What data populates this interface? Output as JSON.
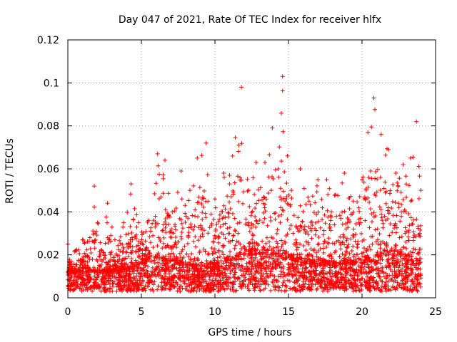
{
  "chart_data": {
    "type": "scatter",
    "title": "Day 047 of 2021, Rate Of TEC Index for receiver hlfx",
    "xlabel": "GPS time / hours",
    "ylabel": "ROTI / TECUs",
    "xlim": [
      0,
      25
    ],
    "ylim": [
      0,
      0.12
    ],
    "xticks": [
      0,
      5,
      10,
      15,
      20,
      25
    ],
    "xtick_labels": [
      "0",
      "5",
      "10",
      "15",
      "20",
      "25"
    ],
    "yticks": [
      0,
      0.02,
      0.04,
      0.06,
      0.08,
      0.1,
      0.12
    ],
    "ytick_labels": [
      "0",
      "0.02",
      "0.04",
      "0.06",
      "0.08",
      "0.1",
      "0.12"
    ],
    "grid": true,
    "marker": "+",
    "color": "#ff0000",
    "data_x_range_hours": [
      0,
      24
    ],
    "envelope": [
      {
        "x": 0.0,
        "y": 0.025
      },
      {
        "x": 0.5,
        "y": 0.022
      },
      {
        "x": 1.0,
        "y": 0.027
      },
      {
        "x": 1.5,
        "y": 0.028
      },
      {
        "x": 1.8,
        "y": 0.052
      },
      {
        "x": 2.3,
        "y": 0.022
      },
      {
        "x": 2.7,
        "y": 0.044
      },
      {
        "x": 3.2,
        "y": 0.027
      },
      {
        "x": 3.8,
        "y": 0.035
      },
      {
        "x": 4.3,
        "y": 0.053
      },
      {
        "x": 4.8,
        "y": 0.035
      },
      {
        "x": 5.5,
        "y": 0.036
      },
      {
        "x": 6.1,
        "y": 0.067
      },
      {
        "x": 6.6,
        "y": 0.064
      },
      {
        "x": 7.1,
        "y": 0.04
      },
      {
        "x": 7.7,
        "y": 0.059
      },
      {
        "x": 8.3,
        "y": 0.05
      },
      {
        "x": 8.8,
        "y": 0.065
      },
      {
        "x": 9.4,
        "y": 0.072
      },
      {
        "x": 10.0,
        "y": 0.046
      },
      {
        "x": 10.6,
        "y": 0.058
      },
      {
        "x": 11.2,
        "y": 0.066
      },
      {
        "x": 11.8,
        "y": 0.098
      },
      {
        "x": 12.3,
        "y": 0.05
      },
      {
        "x": 12.8,
        "y": 0.063
      },
      {
        "x": 13.4,
        "y": 0.063
      },
      {
        "x": 13.9,
        "y": 0.079
      },
      {
        "x": 14.3,
        "y": 0.06
      },
      {
        "x": 14.6,
        "y": 0.103
      },
      {
        "x": 15.2,
        "y": 0.05
      },
      {
        "x": 15.8,
        "y": 0.06
      },
      {
        "x": 16.4,
        "y": 0.045
      },
      {
        "x": 17.0,
        "y": 0.055
      },
      {
        "x": 17.6,
        "y": 0.055
      },
      {
        "x": 18.2,
        "y": 0.048
      },
      {
        "x": 18.8,
        "y": 0.058
      },
      {
        "x": 19.4,
        "y": 0.045
      },
      {
        "x": 20.0,
        "y": 0.055
      },
      {
        "x": 20.4,
        "y": 0.077
      },
      {
        "x": 20.8,
        "y": 0.093
      },
      {
        "x": 21.3,
        "y": 0.076
      },
      {
        "x": 21.8,
        "y": 0.069
      },
      {
        "x": 22.3,
        "y": 0.058
      },
      {
        "x": 22.8,
        "y": 0.062
      },
      {
        "x": 23.3,
        "y": 0.065
      },
      {
        "x": 23.7,
        "y": 0.082
      },
      {
        "x": 24.0,
        "y": 0.05
      }
    ],
    "baseline": [
      {
        "x": 0.0,
        "y": 0.012
      },
      {
        "x": 2.0,
        "y": 0.012
      },
      {
        "x": 4.0,
        "y": 0.013
      },
      {
        "x": 6.0,
        "y": 0.018
      },
      {
        "x": 8.0,
        "y": 0.015
      },
      {
        "x": 10.0,
        "y": 0.014
      },
      {
        "x": 12.0,
        "y": 0.02
      },
      {
        "x": 14.0,
        "y": 0.02
      },
      {
        "x": 16.0,
        "y": 0.016
      },
      {
        "x": 18.0,
        "y": 0.015
      },
      {
        "x": 20.0,
        "y": 0.016
      },
      {
        "x": 22.0,
        "y": 0.02
      },
      {
        "x": 24.0,
        "y": 0.016
      }
    ],
    "floor": 0.003
  }
}
